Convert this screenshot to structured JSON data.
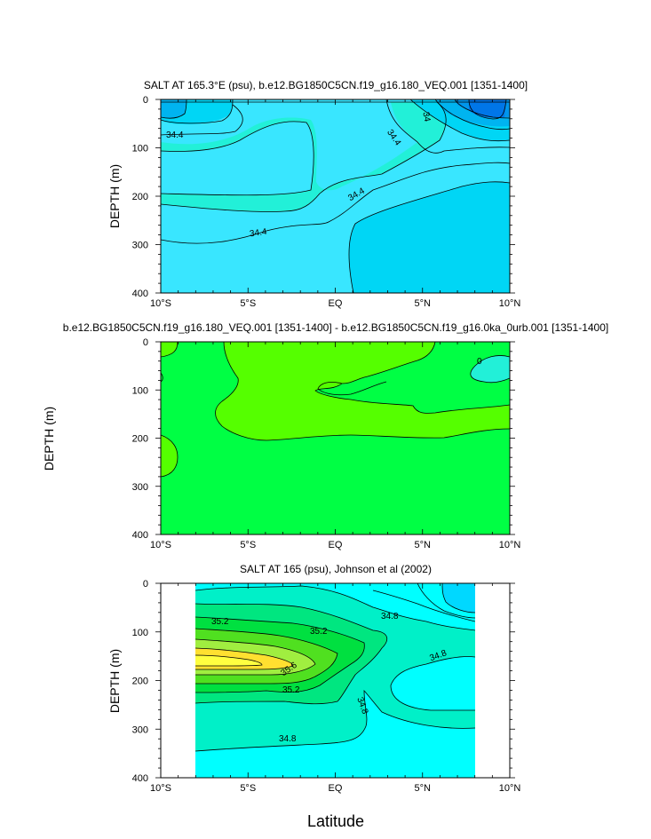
{
  "figure": {
    "xlabel": "Latitude"
  },
  "chart_data": [
    {
      "type": "heatmap",
      "subtype": "filled-contour",
      "title": "SALT AT 165.3°E (psu), b.e12.BG1850C5CN.f19_g16.180_VEQ.001 [1351-1400]",
      "ylabel": "DEPTH (m)",
      "xlim": [
        -10,
        10
      ],
      "ylim": [
        400,
        0
      ],
      "y_inverted": true,
      "xticks": [
        "10°S",
        "5°S",
        "EQ",
        "5°N",
        "10°N"
      ],
      "yticks": [
        "0",
        "100",
        "200",
        "300",
        "400"
      ],
      "contour_labels": [
        "34.4",
        "34",
        "34.4",
        "34.4",
        "34.4"
      ],
      "colors": {
        "fresh": "#0076e8",
        "mid": "#00d6f5",
        "base": "#39e6ff",
        "salty": "#22f0d8"
      }
    },
    {
      "type": "heatmap",
      "subtype": "filled-contour-difference",
      "title": "b.e12.BG1850C5CN.f19_g16.180_VEQ.001 [1351-1400] - b.e12.BG1850C5CN.f19_g16.0ka_0urb.001 [1351-1400]",
      "ylabel": "DEPTH (m)",
      "xlim": [
        -10,
        10
      ],
      "ylim": [
        400,
        0
      ],
      "y_inverted": true,
      "xticks": [
        "10°S",
        "5°S",
        "EQ",
        "5°N",
        "10°N"
      ],
      "yticks": [
        "0",
        "100",
        "200",
        "300",
        "400"
      ],
      "contour_labels": [
        "0"
      ],
      "colors": {
        "base": "#00ff44",
        "positive": "#55ff00",
        "negative": "#22f0d8"
      }
    },
    {
      "type": "heatmap",
      "subtype": "filled-contour",
      "title": "SALT AT 165 (psu), Johnson et al (2002)",
      "ylabel": "DEPTH (m)",
      "xlim": [
        -10,
        10
      ],
      "ylim": [
        400,
        0
      ],
      "y_inverted": true,
      "data_xrange": [
        -8,
        8
      ],
      "xticks": [
        "10°S",
        "5°S",
        "EQ",
        "5°N",
        "10°N"
      ],
      "yticks": [
        "0",
        "100",
        "200",
        "300",
        "400"
      ],
      "contour_labels": [
        "35.2",
        "35.2",
        "35.6",
        "35.2",
        "34.8",
        "34.8",
        "34.8",
        "34.8"
      ],
      "colors": {
        "low": "#00ffff",
        "l1": "#00f0c8",
        "l2": "#00e680",
        "l3": "#00e040",
        "l4": "#50e020",
        "l5": "#a0ee40",
        "l6": "#ffe030",
        "l7": "#ffff40",
        "top": "#00d8ff"
      }
    }
  ]
}
